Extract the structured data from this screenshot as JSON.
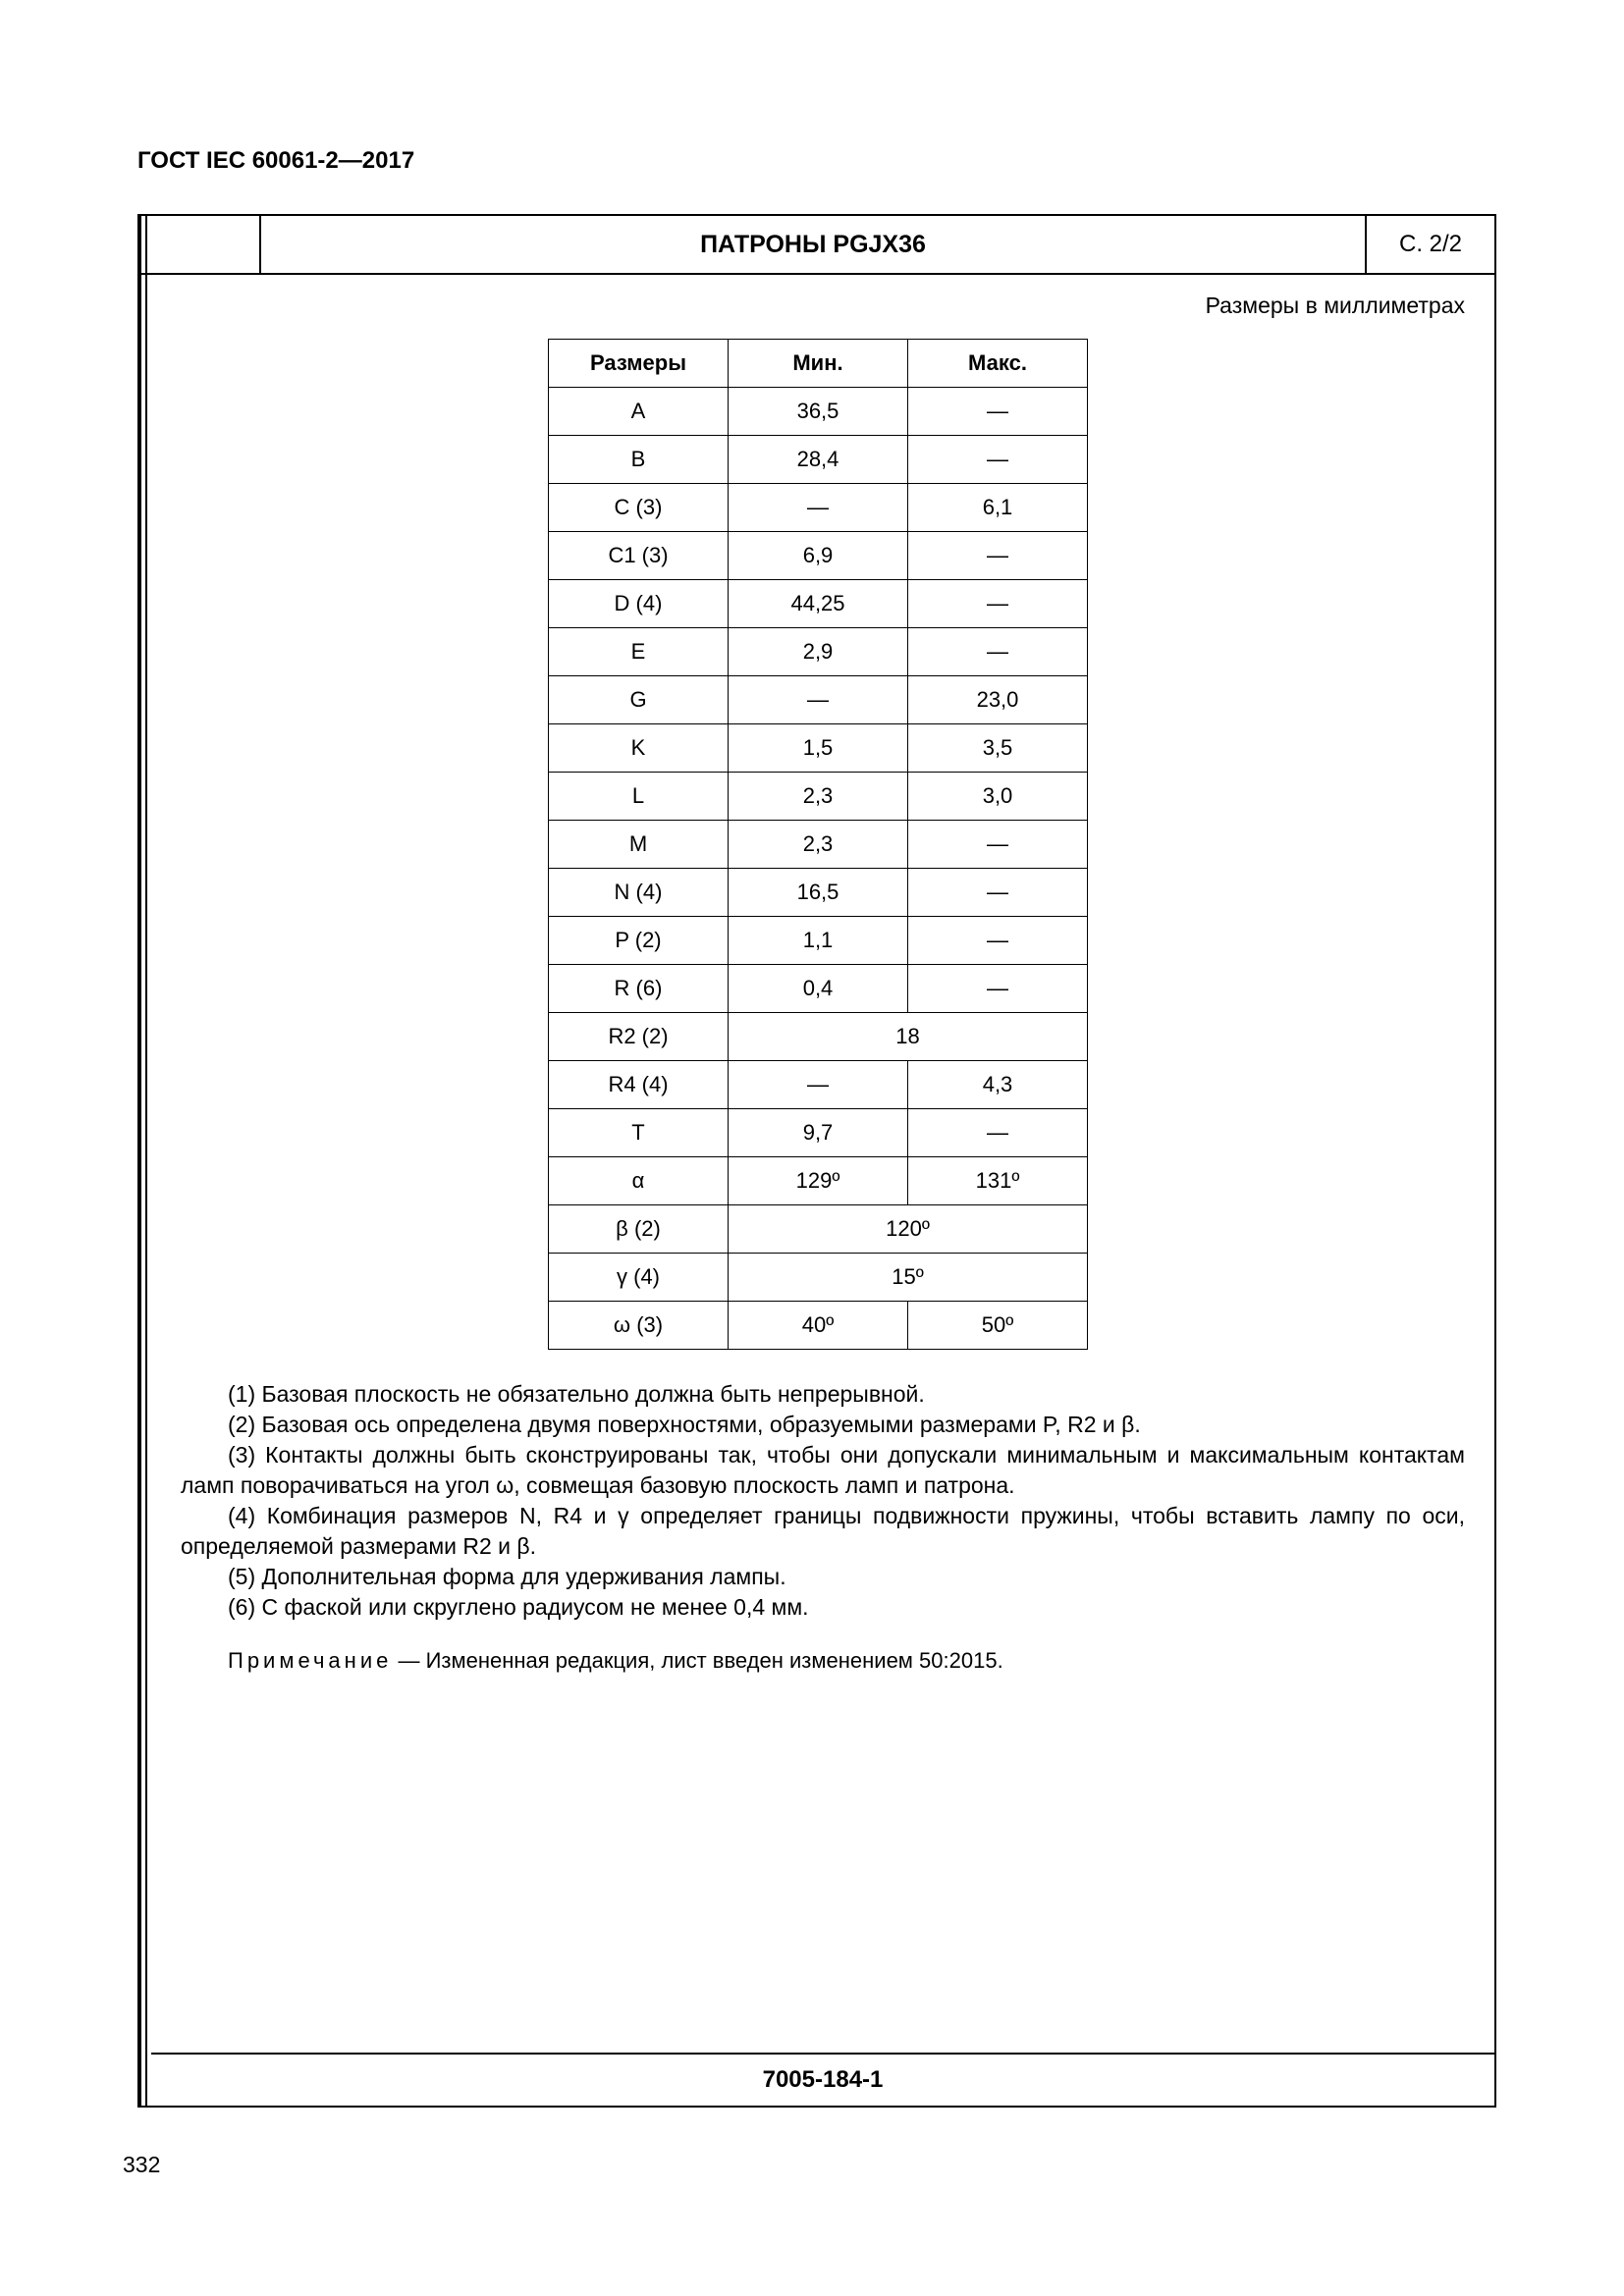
{
  "doc_code": "ГОСТ IEC 60061-2—2017",
  "header": {
    "title": "ПАТРОНЫ PGJX36",
    "page_ref": "С. 2/2"
  },
  "units_line": "Размеры в миллиметрах",
  "table": {
    "columns": [
      "Размеры",
      "Мин.",
      "Макс."
    ],
    "rows": [
      {
        "name": "A",
        "min": "36,5",
        "max": "—",
        "merge": false
      },
      {
        "name": "B",
        "min": "28,4",
        "max": "—",
        "merge": false
      },
      {
        "name": "C (3)",
        "min": "—",
        "max": "6,1",
        "merge": false
      },
      {
        "name": "C1 (3)",
        "min": "6,9",
        "max": "—",
        "merge": false
      },
      {
        "name": "D (4)",
        "min": "44,25",
        "max": "—",
        "merge": false
      },
      {
        "name": "E",
        "min": "2,9",
        "max": "—",
        "merge": false
      },
      {
        "name": "G",
        "min": "—",
        "max": "23,0",
        "merge": false
      },
      {
        "name": "K",
        "min": "1,5",
        "max": "3,5",
        "merge": false
      },
      {
        "name": "L",
        "min": "2,3",
        "max": "3,0",
        "merge": false
      },
      {
        "name": "M",
        "min": "2,3",
        "max": "—",
        "merge": false
      },
      {
        "name": "N (4)",
        "min": "16,5",
        "max": "—",
        "merge": false
      },
      {
        "name": "P (2)",
        "min": "1,1",
        "max": "—",
        "merge": false
      },
      {
        "name": "R (6)",
        "min": "0,4",
        "max": "—",
        "merge": false
      },
      {
        "name": "R2 (2)",
        "min": "18",
        "max": "",
        "merge": true
      },
      {
        "name": "R4 (4)",
        "min": "—",
        "max": "4,3",
        "merge": false
      },
      {
        "name": "T",
        "min": "9,7",
        "max": "—",
        "merge": false
      },
      {
        "name": "α",
        "min": "129º",
        "max": "131º",
        "merge": false
      },
      {
        "name": "β (2)",
        "min": "120º",
        "max": "",
        "merge": true
      },
      {
        "name": "γ (4)",
        "min": "15º",
        "max": "",
        "merge": true
      },
      {
        "name": "ω (3)",
        "min": "40º",
        "max": "50º",
        "merge": false
      }
    ]
  },
  "notes": {
    "n1": "(1) Базовая плоскость не обязательно должна быть непрерывной.",
    "n2": "(2) Базовая ось определена двумя поверхностями, образуемыми размерами P, R2 и β.",
    "n3": "(3) Контакты должны быть сконструированы так, чтобы они допускали минимальным и максимальным контактам ламп поворачиваться на угол ω, совмещая базовую плоскость ламп и патрона.",
    "n4": "(4) Комбинация размеров N, R4 и γ определяет границы подвижности пружины, чтобы вставить лампу по оси, определяемой размерами R2 и β.",
    "n5": "(5) Дополнительная форма для удерживания лампы.",
    "n6": "(6) С фаской или скруглено радиусом не менее 0,4 мм."
  },
  "remark": {
    "label": "Примечание",
    "text": " —  Измененная редакция, лист введен изменением 50:2015."
  },
  "footer_code": "7005-184-1",
  "page_number": "332"
}
